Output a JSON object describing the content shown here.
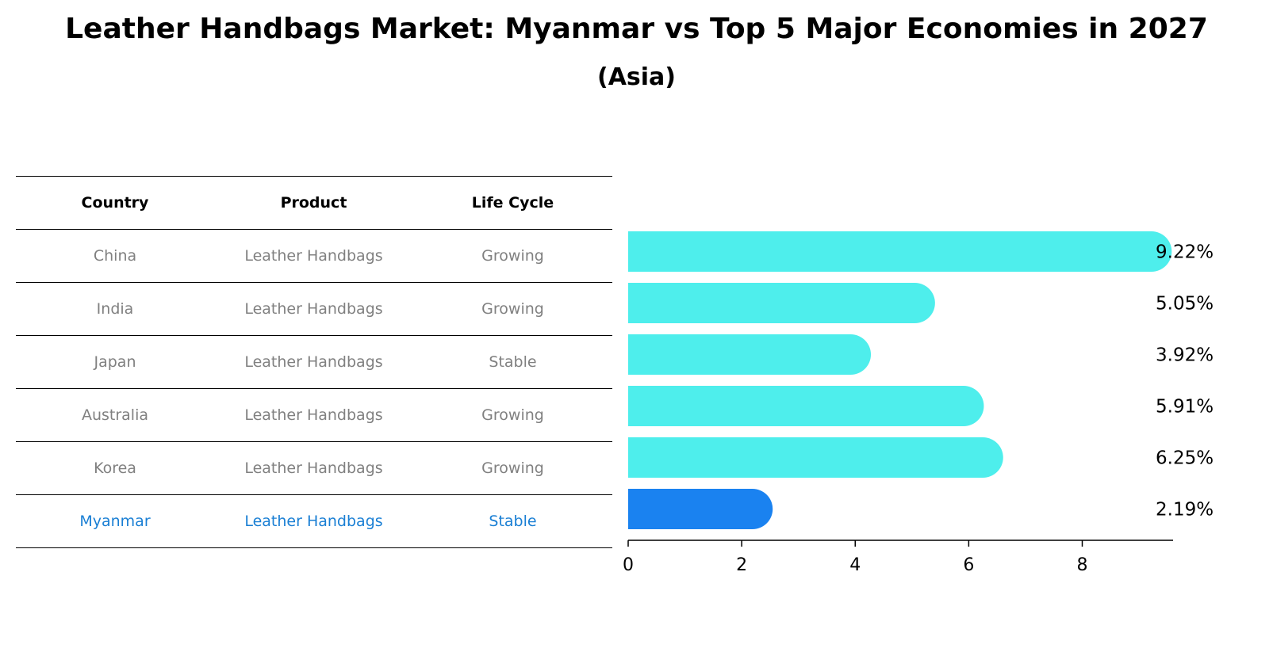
{
  "colors": {
    "bar": "#4EEEEC",
    "highlight_bar": "#1A82F0",
    "highlight_text": "#1a7fd4",
    "muted_text": "#808080"
  },
  "chart_data": {
    "type": "bar",
    "orientation": "horizontal",
    "title": "Leather Handbags Market: Myanmar vs Top 5 Major Economies in 2027",
    "subtitle": "(Asia)",
    "table": {
      "headers": [
        "Country",
        "Product",
        "Life Cycle"
      ],
      "rows": [
        [
          "China",
          "Leather Handbags",
          "Growing"
        ],
        [
          "India",
          "Leather Handbags",
          "Growing"
        ],
        [
          "Japan",
          "Leather Handbags",
          "Stable"
        ],
        [
          "Australia",
          "Leather Handbags",
          "Growing"
        ],
        [
          "Korea",
          "Leather Handbags",
          "Growing"
        ],
        [
          "Myanmar",
          "Leather Handbags",
          "Stable"
        ]
      ]
    },
    "categories": [
      "China",
      "India",
      "Japan",
      "Australia",
      "Korea",
      "Myanmar"
    ],
    "values": [
      9.22,
      5.05,
      3.92,
      5.91,
      6.25,
      2.19
    ],
    "value_labels": [
      "9.22%",
      "5.05%",
      "3.92%",
      "5.91%",
      "6.25%",
      "2.19%"
    ],
    "highlight": "Myanmar",
    "xlim": [
      0,
      9.6
    ],
    "xticks": [
      0,
      2,
      4,
      6,
      8
    ],
    "xlabel": "",
    "ylabel": ""
  }
}
